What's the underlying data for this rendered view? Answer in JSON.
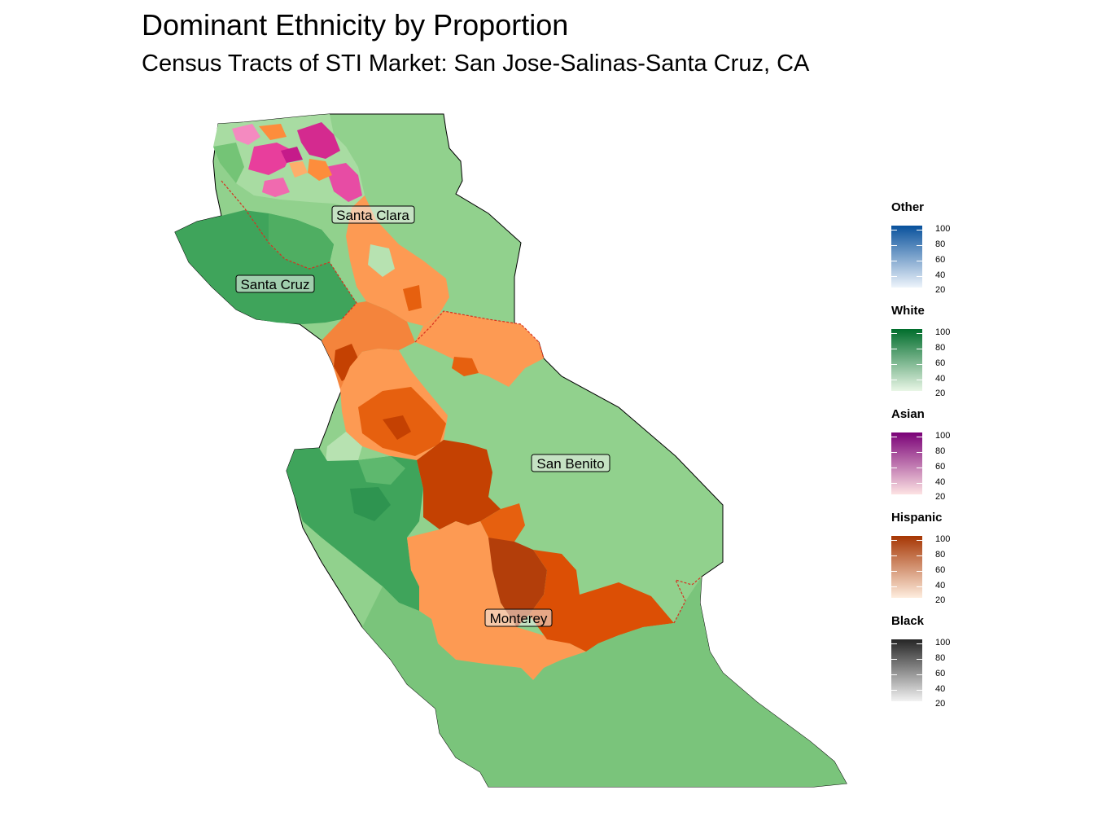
{
  "title": "Dominant Ethnicity by Proportion",
  "subtitle": "Census Tracts of STI Market: San Jose-Salinas-Santa Cruz, CA",
  "county_labels": [
    "Santa Clara",
    "Santa Cruz",
    "San Benito",
    "Monterey"
  ],
  "legend": [
    {
      "title": "Other",
      "ticks": [
        "100",
        "80",
        "60",
        "40",
        "20"
      ],
      "low_color": "#eef4fb",
      "high_color": "#08519c"
    },
    {
      "title": "White",
      "ticks": [
        "100",
        "80",
        "60",
        "40",
        "20"
      ],
      "low_color": "#e9f6e6",
      "high_color": "#006d2c"
    },
    {
      "title": "Asian",
      "ticks": [
        "100",
        "80",
        "60",
        "40",
        "20"
      ],
      "low_color": "#fde3e3",
      "high_color": "#7a0177"
    },
    {
      "title": "Hispanic",
      "ticks": [
        "100",
        "80",
        "60",
        "40",
        "20"
      ],
      "low_color": "#feedde",
      "high_color": "#a63603"
    },
    {
      "title": "Black",
      "ticks": [
        "100",
        "80",
        "60",
        "40",
        "20"
      ],
      "low_color": "#f2f2f2",
      "high_color": "#252525"
    }
  ],
  "colors": {
    "white_light": "#91d18d",
    "white_mid": "#7ac47b",
    "white_dark": "#3fa45b",
    "hispanic_light": "#fd9a53",
    "hispanic_mid": "#e6600f",
    "hispanic_dark": "#c44102",
    "asian": "#e83e9c",
    "county_border": "#d7301f"
  }
}
